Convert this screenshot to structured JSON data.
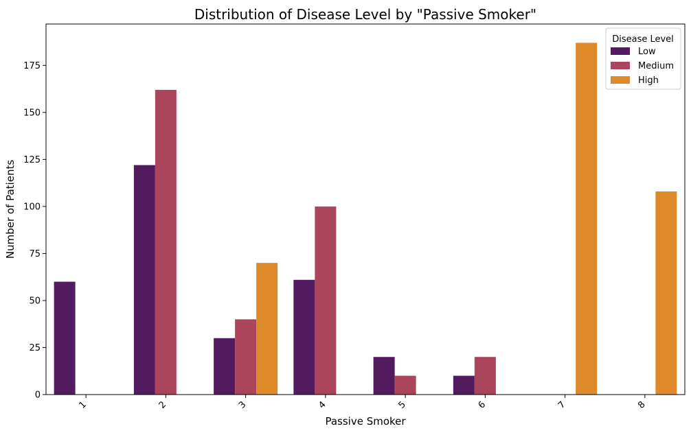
{
  "chart_data": {
    "type": "bar",
    "title": "Distribution of Disease Level by \"Passive Smoker\"",
    "xlabel": "Passive Smoker",
    "ylabel": "Number of Patients",
    "categories": [
      "1",
      "2",
      "3",
      "4",
      "5",
      "6",
      "7",
      "8"
    ],
    "ylim": [
      0,
      197
    ],
    "yticks": [
      0,
      25,
      50,
      75,
      100,
      125,
      150,
      175
    ],
    "grid": false,
    "legend": {
      "title": "Disease Level",
      "placement": "top-right"
    },
    "series": [
      {
        "name": "Low",
        "color": "#521b5f",
        "values": [
          60,
          122,
          30,
          61,
          20,
          10,
          0,
          0
        ]
      },
      {
        "name": "Medium",
        "color": "#ab455b",
        "values": [
          0,
          162,
          40,
          100,
          10,
          20,
          0,
          0
        ]
      },
      {
        "name": "High",
        "color": "#df8a2a",
        "values": [
          0,
          0,
          70,
          0,
          0,
          0,
          187,
          108
        ]
      }
    ]
  }
}
